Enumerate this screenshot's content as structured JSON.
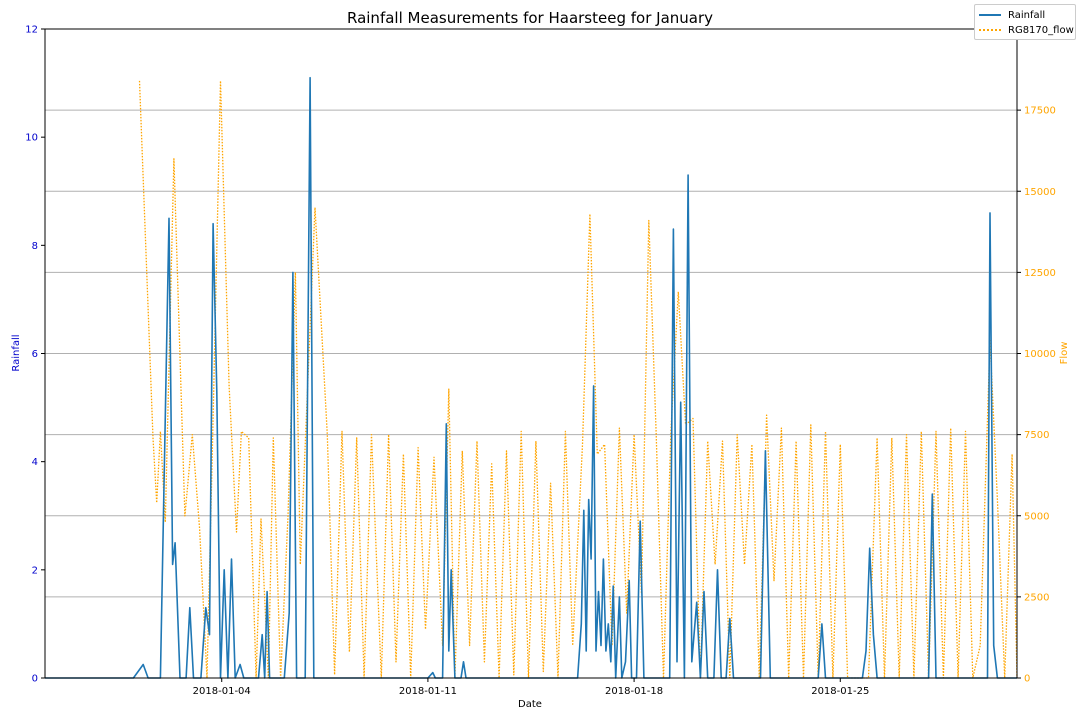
{
  "chart_data": {
    "type": "line",
    "title": "Rainfall Measurements for Haarsteeg for January",
    "xlabel": "Date",
    "ylabel_left": "Rainfall",
    "ylabel_right": "Flow",
    "x_range": [
      "2017-12-29",
      "2018-01-31"
    ],
    "x_ticks": [
      "2018-01-04",
      "2018-01-11",
      "2018-01-18",
      "2018-01-25"
    ],
    "y_left_lim": [
      0,
      12
    ],
    "y_left_ticks": [
      0,
      2,
      4,
      6,
      8,
      10,
      12
    ],
    "y_right_lim": [
      0,
      20000
    ],
    "y_right_ticks": [
      0,
      2500,
      5000,
      7500,
      10000,
      12500,
      15000,
      17500
    ],
    "grid": "horizontal at right-axis ticks",
    "legend_position": "top-right",
    "colors": {
      "rainfall": "#1f77b4",
      "flow": "#ffa500",
      "left_axis": "#0000cc",
      "right_axis": "#ffa500"
    },
    "series": [
      {
        "name": "Rainfall",
        "axis": "left",
        "style": "solid",
        "points": [
          [
            "2017-12-29 00:00",
            0
          ],
          [
            "2018-01-01 00:00",
            0
          ],
          [
            "2018-01-01 08:00",
            0.25
          ],
          [
            "2018-01-01 12:00",
            0
          ],
          [
            "2018-01-01 22:00",
            0
          ],
          [
            "2018-01-02 05:00",
            8.5
          ],
          [
            "2018-01-02 08:00",
            2.1
          ],
          [
            "2018-01-02 10:00",
            2.5
          ],
          [
            "2018-01-02 14:00",
            0
          ],
          [
            "2018-01-02 19:00",
            0
          ],
          [
            "2018-01-02 22:00",
            1.3
          ],
          [
            "2018-01-03 01:00",
            0
          ],
          [
            "2018-01-03 07:00",
            0
          ],
          [
            "2018-01-03 11:00",
            1.3
          ],
          [
            "2018-01-03 14:00",
            0.8
          ],
          [
            "2018-01-03 17:00",
            8.4
          ],
          [
            "2018-01-03 20:00",
            5.3
          ],
          [
            "2018-01-03 23:00",
            0
          ],
          [
            "2018-01-04 02:00",
            2.0
          ],
          [
            "2018-01-04 05:00",
            0
          ],
          [
            "2018-01-04 08:00",
            2.2
          ],
          [
            "2018-01-04 11:00",
            0
          ],
          [
            "2018-01-04 15:00",
            0.25
          ],
          [
            "2018-01-04 18:00",
            0
          ],
          [
            "2018-01-05 06:00",
            0
          ],
          [
            "2018-01-05 09:00",
            0.8
          ],
          [
            "2018-01-05 11:00",
            0
          ],
          [
            "2018-01-05 13:00",
            1.6
          ],
          [
            "2018-01-05 15:00",
            0
          ],
          [
            "2018-01-06 03:00",
            0
          ],
          [
            "2018-01-06 07:00",
            1.2
          ],
          [
            "2018-01-06 10:00",
            7.5
          ],
          [
            "2018-01-06 13:00",
            0
          ],
          [
            "2018-01-06 20:00",
            0
          ],
          [
            "2018-01-07 00:00",
            11.1
          ],
          [
            "2018-01-07 03:00",
            0
          ],
          [
            "2018-01-11 00:00",
            0
          ],
          [
            "2018-01-11 04:00",
            0.1
          ],
          [
            "2018-01-11 06:00",
            0
          ],
          [
            "2018-01-11 12:00",
            0
          ],
          [
            "2018-01-11 15:00",
            4.7
          ],
          [
            "2018-01-11 17:00",
            0.5
          ],
          [
            "2018-01-11 19:00",
            2.0
          ],
          [
            "2018-01-11 22:00",
            0
          ],
          [
            "2018-01-12 03:00",
            0
          ],
          [
            "2018-01-12 05:00",
            0.3
          ],
          [
            "2018-01-12 07:00",
            0
          ],
          [
            "2018-01-16 02:00",
            0
          ],
          [
            "2018-01-16 05:00",
            1.0
          ],
          [
            "2018-01-16 07:00",
            3.1
          ],
          [
            "2018-01-16 09:00",
            0.5
          ],
          [
            "2018-01-16 11:00",
            3.3
          ],
          [
            "2018-01-16 13:00",
            2.2
          ],
          [
            "2018-01-16 15:00",
            5.4
          ],
          [
            "2018-01-16 17:00",
            0.5
          ],
          [
            "2018-01-16 19:00",
            1.6
          ],
          [
            "2018-01-16 21:00",
            0.6
          ],
          [
            "2018-01-16 23:00",
            2.2
          ],
          [
            "2018-01-17 01:00",
            0.5
          ],
          [
            "2018-01-17 03:00",
            1.0
          ],
          [
            "2018-01-17 05:00",
            0.3
          ],
          [
            "2018-01-17 07:00",
            1.7
          ],
          [
            "2018-01-17 09:00",
            0
          ],
          [
            "2018-01-17 12:00",
            1.5
          ],
          [
            "2018-01-17 14:00",
            0
          ],
          [
            "2018-01-17 17:00",
            0.3
          ],
          [
            "2018-01-17 20:00",
            1.8
          ],
          [
            "2018-01-17 22:00",
            0
          ],
          [
            "2018-01-18 02:00",
            0
          ],
          [
            "2018-01-18 05:00",
            2.9
          ],
          [
            "2018-01-18 08:00",
            0
          ],
          [
            "2018-01-19 05:00",
            0
          ],
          [
            "2018-01-19 08:00",
            8.3
          ],
          [
            "2018-01-19 11:00",
            0.3
          ],
          [
            "2018-01-19 14:00",
            5.1
          ],
          [
            "2018-01-19 17:00",
            0
          ],
          [
            "2018-01-19 20:00",
            9.3
          ],
          [
            "2018-01-19 23:00",
            0.3
          ],
          [
            "2018-01-20 03:00",
            1.4
          ],
          [
            "2018-01-20 06:00",
            0
          ],
          [
            "2018-01-20 09:00",
            1.6
          ],
          [
            "2018-01-20 12:00",
            0
          ],
          [
            "2018-01-20 17:00",
            0
          ],
          [
            "2018-01-20 20:00",
            2.0
          ],
          [
            "2018-01-20 23:00",
            0
          ],
          [
            "2018-01-21 03:00",
            0
          ],
          [
            "2018-01-21 06:00",
            1.1
          ],
          [
            "2018-01-21 09:00",
            0
          ],
          [
            "2018-01-22 07:00",
            0
          ],
          [
            "2018-01-22 11:00",
            4.2
          ],
          [
            "2018-01-22 15:00",
            0
          ],
          [
            "2018-01-24 06:00",
            0
          ],
          [
            "2018-01-24 09:00",
            1.0
          ],
          [
            "2018-01-24 12:00",
            0
          ],
          [
            "2018-01-25 18:00",
            0
          ],
          [
            "2018-01-25 21:00",
            0.5
          ],
          [
            "2018-01-26 00:00",
            2.4
          ],
          [
            "2018-01-26 03:00",
            0.8
          ],
          [
            "2018-01-26 06:00",
            0
          ],
          [
            "2018-01-28 00:00",
            0
          ],
          [
            "2018-01-28 03:00",
            3.4
          ],
          [
            "2018-01-28 06:00",
            0
          ],
          [
            "2018-01-30 00:00",
            0
          ],
          [
            "2018-01-30 02:00",
            8.6
          ],
          [
            "2018-01-30 05:00",
            0.6
          ],
          [
            "2018-01-30 08:00",
            0
          ],
          [
            "2018-01-31 00:00",
            0
          ]
        ]
      },
      {
        "name": "RG8170_flow",
        "axis": "right",
        "style": "dotted",
        "points": [
          [
            "2018-01-01 05:00",
            18400
          ],
          [
            "2018-01-01 16:00",
            7400
          ],
          [
            "2018-01-01 19:00",
            5400
          ],
          [
            "2018-01-01 22:00",
            7600
          ],
          [
            "2018-01-02 02:00",
            4800
          ],
          [
            "2018-01-02 09:00",
            16000
          ],
          [
            "2018-01-02 18:00",
            5000
          ],
          [
            "2018-01-03 00:00",
            7500
          ],
          [
            "2018-01-03 06:00",
            4600
          ],
          [
            "2018-01-03 12:00",
            0
          ],
          [
            "2018-01-03 17:00",
            8000
          ],
          [
            "2018-01-03 23:00",
            18400
          ],
          [
            "2018-01-04 06:00",
            9000
          ],
          [
            "2018-01-04 12:00",
            4500
          ],
          [
            "2018-01-04 16:00",
            7600
          ],
          [
            "2018-01-04 22:00",
            7400
          ],
          [
            "2018-01-05 04:00",
            0
          ],
          [
            "2018-01-05 08:00",
            4900
          ],
          [
            "2018-01-05 14:00",
            0
          ],
          [
            "2018-01-05 18:00",
            7400
          ],
          [
            "2018-01-06 00:00",
            0
          ],
          [
            "2018-01-06 06:00",
            5000
          ],
          [
            "2018-01-06 12:00",
            12500
          ],
          [
            "2018-01-06 16:00",
            3500
          ],
          [
            "2018-01-07 04:00",
            14500
          ],
          [
            "2018-01-07 14:00",
            7500
          ],
          [
            "2018-01-07 20:00",
            100
          ],
          [
            "2018-01-08 02:00",
            7600
          ],
          [
            "2018-01-08 08:00",
            800
          ],
          [
            "2018-01-08 14:00",
            7400
          ],
          [
            "2018-01-08 20:00",
            0
          ],
          [
            "2018-01-09 02:00",
            7500
          ],
          [
            "2018-01-09 10:00",
            0
          ],
          [
            "2018-01-09 16:00",
            7500
          ],
          [
            "2018-01-09 22:00",
            500
          ],
          [
            "2018-01-10 04:00",
            6900
          ],
          [
            "2018-01-10 10:00",
            0
          ],
          [
            "2018-01-10 16:00",
            7100
          ],
          [
            "2018-01-10 22:00",
            1500
          ],
          [
            "2018-01-11 05:00",
            6800
          ],
          [
            "2018-01-11 12:00",
            1000
          ],
          [
            "2018-01-11 17:00",
            8900
          ],
          [
            "2018-01-11 22:00",
            0
          ],
          [
            "2018-01-12 04:00",
            7000
          ],
          [
            "2018-01-12 10:00",
            1000
          ],
          [
            "2018-01-12 16:00",
            7300
          ],
          [
            "2018-01-12 22:00",
            500
          ],
          [
            "2018-01-13 04:00",
            6600
          ],
          [
            "2018-01-13 10:00",
            0
          ],
          [
            "2018-01-13 16:00",
            7000
          ],
          [
            "2018-01-13 22:00",
            100
          ],
          [
            "2018-01-14 04:00",
            7600
          ],
          [
            "2018-01-14 10:00",
            0
          ],
          [
            "2018-01-14 16:00",
            7300
          ],
          [
            "2018-01-14 22:00",
            200
          ],
          [
            "2018-01-15 04:00",
            6000
          ],
          [
            "2018-01-15 10:00",
            0
          ],
          [
            "2018-01-15 16:00",
            7600
          ],
          [
            "2018-01-15 22:00",
            1000
          ],
          [
            "2018-01-16 06:00",
            7200
          ],
          [
            "2018-01-16 12:00",
            14300
          ],
          [
            "2018-01-16 18:00",
            6900
          ],
          [
            "2018-01-17 00:00",
            7200
          ],
          [
            "2018-01-17 06:00",
            1000
          ],
          [
            "2018-01-17 12:00",
            7700
          ],
          [
            "2018-01-17 18:00",
            2000
          ],
          [
            "2018-01-18 00:00",
            7500
          ],
          [
            "2018-01-18 06:00",
            2600
          ],
          [
            "2018-01-18 12:00",
            14100
          ],
          [
            "2018-01-18 18:00",
            7500
          ],
          [
            "2018-01-19 00:00",
            0
          ],
          [
            "2018-01-19 06:00",
            7600
          ],
          [
            "2018-01-19 12:00",
            11900
          ],
          [
            "2018-01-19 18:00",
            7800
          ],
          [
            "2018-01-20 00:00",
            8000
          ],
          [
            "2018-01-20 06:00",
            0
          ],
          [
            "2018-01-20 12:00",
            7300
          ],
          [
            "2018-01-20 18:00",
            3500
          ],
          [
            "2018-01-21 00:00",
            7300
          ],
          [
            "2018-01-21 06:00",
            0
          ],
          [
            "2018-01-21 12:00",
            7500
          ],
          [
            "2018-01-21 18:00",
            3500
          ],
          [
            "2018-01-22 00:00",
            7200
          ],
          [
            "2018-01-22 06:00",
            0
          ],
          [
            "2018-01-22 12:00",
            8100
          ],
          [
            "2018-01-22 18:00",
            3000
          ],
          [
            "2018-01-23 00:00",
            7700
          ],
          [
            "2018-01-23 06:00",
            0
          ],
          [
            "2018-01-23 12:00",
            7300
          ],
          [
            "2018-01-23 18:00",
            0
          ],
          [
            "2018-01-24 00:00",
            7800
          ],
          [
            "2018-01-24 06:00",
            0
          ],
          [
            "2018-01-24 12:00",
            7600
          ],
          [
            "2018-01-24 18:00",
            0
          ],
          [
            "2018-01-25 00:00",
            7200
          ],
          [
            "2018-01-25 06:00",
            0
          ],
          [
            "2018-01-25 12:00",
            0
          ],
          [
            "2018-01-25 23:00",
            0
          ],
          [
            "2018-01-26 06:00",
            7400
          ],
          [
            "2018-01-26 12:00",
            0
          ],
          [
            "2018-01-26 18:00",
            7400
          ],
          [
            "2018-01-27 00:00",
            0
          ],
          [
            "2018-01-27 06:00",
            7500
          ],
          [
            "2018-01-27 12:00",
            0
          ],
          [
            "2018-01-27 18:00",
            7600
          ],
          [
            "2018-01-28 00:00",
            0
          ],
          [
            "2018-01-28 06:00",
            7600
          ],
          [
            "2018-01-28 12:00",
            0
          ],
          [
            "2018-01-28 18:00",
            7700
          ],
          [
            "2018-01-29 00:00",
            0
          ],
          [
            "2018-01-29 06:00",
            7600
          ],
          [
            "2018-01-29 12:00",
            0
          ],
          [
            "2018-01-29 18:00",
            1000
          ],
          [
            "2018-01-30 02:00",
            10400
          ],
          [
            "2018-01-30 08:00",
            5500
          ],
          [
            "2018-01-30 14:00",
            0
          ],
          [
            "2018-01-30 20:00",
            6900
          ],
          [
            "2018-01-31 00:00",
            0
          ]
        ]
      }
    ]
  }
}
